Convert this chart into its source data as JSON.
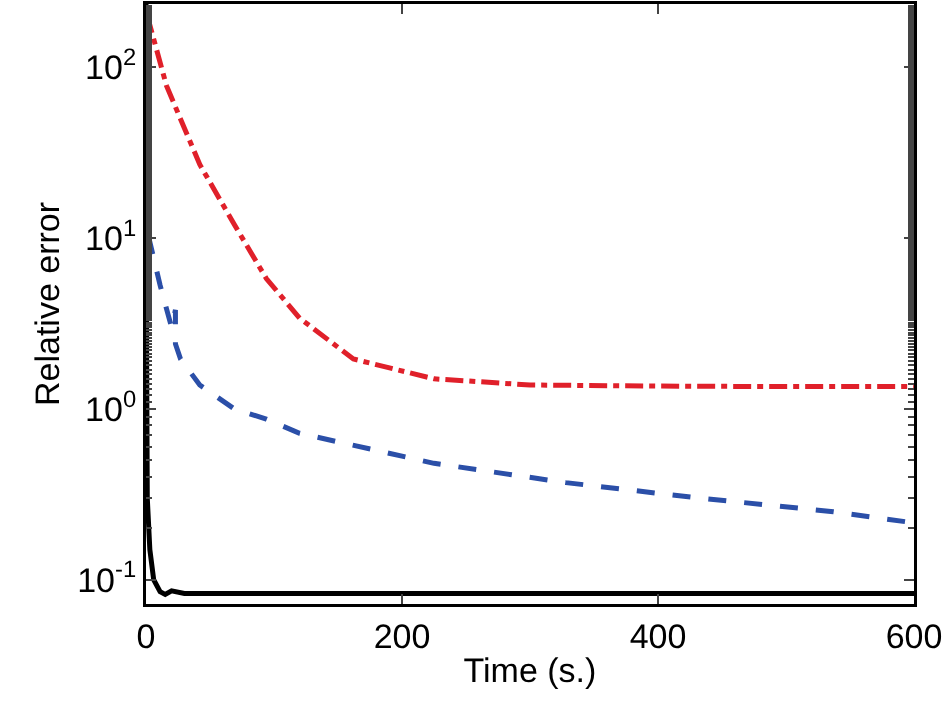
{
  "chart_data": {
    "type": "line",
    "xlabel": "Time (s.)",
    "ylabel": "Relative error",
    "log": "y",
    "grid": false,
    "marker": "none",
    "xlim": [
      0,
      600
    ],
    "xticks": [
      0,
      200,
      400,
      600
    ],
    "ylim": [
      0.072,
      235
    ],
    "yticks": [
      {
        "value": 0.1,
        "label": "10$^{-1}$"
      },
      {
        "value": 1,
        "label": "10$^{0}$"
      },
      {
        "value": 10,
        "label": "10$^{1}$"
      },
      {
        "value": 100,
        "label": "10$^{2}$"
      }
    ],
    "series": [
      {
        "color": "#e0202a",
        "line_style": "dashdot",
        "x": [
          0,
          3,
          16,
          42,
          69,
          94,
          120,
          162,
          225,
          300,
          400,
          500,
          600
        ],
        "values": [
          200,
          177,
          78,
          27,
          12,
          5.8,
          3.4,
          1.96,
          1.5,
          1.38,
          1.36,
          1.35,
          1.35
        ]
      },
      {
        "color": "#2b4fa8",
        "line_style": "dashed",
        "x": [
          0,
          3,
          11,
          20,
          23,
          23,
          27,
          42,
          69,
          94,
          120,
          225,
          328,
          433,
          537,
          600
        ],
        "values": [
          10,
          9.5,
          5.3,
          3.0,
          3.8,
          2.4,
          1.96,
          1.38,
          1.0,
          0.87,
          0.72,
          0.48,
          0.37,
          0.3,
          0.25,
          0.215
        ]
      },
      {
        "color": "#000000",
        "line_style": "solid",
        "x": [
          0,
          0.5,
          1,
          3,
          6,
          11,
          15,
          20,
          30,
          100,
          300,
          600
        ],
        "values": [
          235,
          2,
          0.3,
          0.15,
          0.1,
          0.085,
          0.082,
          0.086,
          0.083,
          0.083,
          0.083,
          0.083
        ]
      }
    ]
  }
}
